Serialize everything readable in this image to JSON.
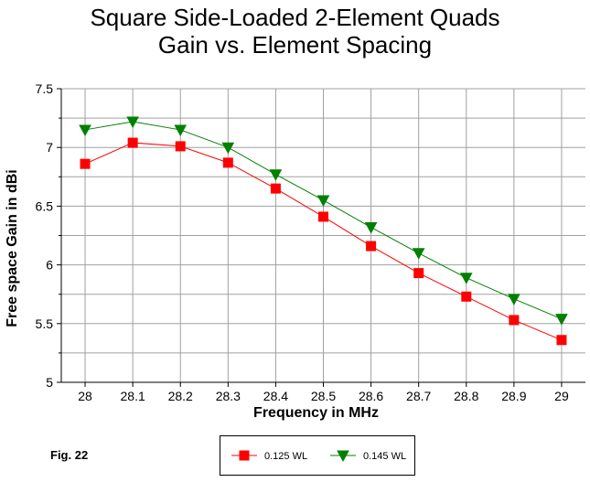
{
  "title_lines": [
    "Square Side-Loaded 2-Element Quads",
    "Gain vs. Element Spacing"
  ],
  "figure_label": "Fig. 22",
  "chart_data": {
    "type": "line",
    "title": "Square Side-Loaded 2-Element Quads Gain vs. Element Spacing",
    "xlabel": "Frequency in MHz",
    "ylabel": "Free space Gain in dBi",
    "x": [
      28,
      28.1,
      28.2,
      28.3,
      28.4,
      28.5,
      28.6,
      28.7,
      28.8,
      28.9,
      29
    ],
    "x_tick_labels": [
      "28",
      "28.1",
      "28.2",
      "28.3",
      "28.4",
      "28.5",
      "28.6",
      "28.7",
      "28.8",
      "28.9",
      "29"
    ],
    "y_tick_labels": [
      "5",
      "5.5",
      "6",
      "6.5",
      "7",
      "7.5"
    ],
    "xlim": [
      27.95,
      29.05
    ],
    "ylim": [
      5,
      7.5
    ],
    "grid": true,
    "legend_position": "bottom-center",
    "series": [
      {
        "name": "0.125 WL",
        "color": "#ff0000",
        "marker": "square",
        "values": [
          6.86,
          7.04,
          7.01,
          6.87,
          6.65,
          6.41,
          6.16,
          5.93,
          5.73,
          5.53,
          5.36
        ]
      },
      {
        "name": "0.145 WL",
        "color": "#008000",
        "marker": "triangle-down",
        "values": [
          7.15,
          7.22,
          7.15,
          7.0,
          6.77,
          6.55,
          6.32,
          6.1,
          5.89,
          5.71,
          5.54
        ]
      }
    ]
  }
}
